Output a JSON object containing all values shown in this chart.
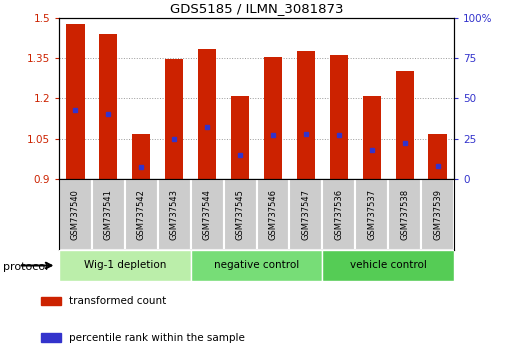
{
  "title": "GDS5185 / ILMN_3081873",
  "samples": [
    "GSM737540",
    "GSM737541",
    "GSM737542",
    "GSM737543",
    "GSM737544",
    "GSM737545",
    "GSM737546",
    "GSM737547",
    "GSM737536",
    "GSM737537",
    "GSM737538",
    "GSM737539"
  ],
  "transformed_counts": [
    1.475,
    1.44,
    1.065,
    1.345,
    1.385,
    1.21,
    1.355,
    1.375,
    1.36,
    1.21,
    1.3,
    1.065
  ],
  "percentile_ranks": [
    43,
    40,
    7,
    25,
    32,
    15,
    27,
    28,
    27,
    18,
    22,
    8
  ],
  "ylim_left": [
    0.9,
    1.5
  ],
  "ylim_right": [
    0,
    100
  ],
  "yticks_left": [
    0.9,
    1.05,
    1.2,
    1.35,
    1.5
  ],
  "yticks_right": [
    0,
    25,
    50,
    75,
    100
  ],
  "ytick_labels_left": [
    "0.9",
    "1.05",
    "1.2",
    "1.35",
    "1.5"
  ],
  "ytick_labels_right": [
    "0",
    "25",
    "50",
    "75",
    "100%"
  ],
  "bar_color": "#CC2200",
  "percentile_color": "#3333CC",
  "bar_width": 0.55,
  "groups": [
    {
      "label": "Wig-1 depletion",
      "start": 0,
      "end": 3,
      "color": "#BBEEAA"
    },
    {
      "label": "negative control",
      "start": 4,
      "end": 7,
      "color": "#77DD77"
    },
    {
      "label": "vehicle control",
      "start": 8,
      "end": 11,
      "color": "#55CC55"
    }
  ],
  "legend_items": [
    {
      "label": "transformed count",
      "color": "#CC2200"
    },
    {
      "label": "percentile rank within the sample",
      "color": "#3333CC"
    }
  ],
  "protocol_label": "protocol",
  "background_color": "#FFFFFF",
  "plot_bg_color": "#FFFFFF",
  "grid_color": "#999999",
  "tick_color_left": "#CC2200",
  "tick_color_right": "#3333CC",
  "base_value": 0.9,
  "sample_box_color": "#CCCCCC",
  "sample_box_edge": "#FFFFFF"
}
